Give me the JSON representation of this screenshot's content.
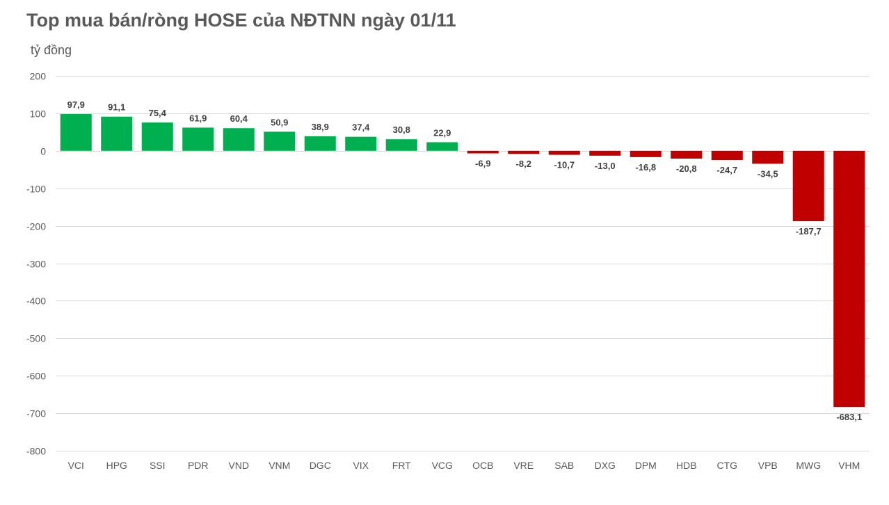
{
  "chart_data": {
    "type": "bar",
    "title": "Top mua bán/ròng HOSE của NĐTNN ngày 01/11",
    "ylabel": "tỷ đồng",
    "xlabel": "",
    "ylim": [
      -800,
      200
    ],
    "yticks": [
      200,
      100,
      0,
      -100,
      -200,
      -300,
      -400,
      -500,
      -600,
      -700,
      -800
    ],
    "ytick_labels": [
      "200",
      "100",
      "0",
      "-100",
      "-200",
      "-300",
      "-400",
      "-500",
      "-600",
      "-700",
      "-800"
    ],
    "grid": true,
    "legend": "none",
    "colors": {
      "positive": "#00b050",
      "negative": "#c00000"
    },
    "categories": [
      "VCI",
      "HPG",
      "SSI",
      "PDR",
      "VND",
      "VNM",
      "DGC",
      "VIX",
      "FRT",
      "VCG",
      "OCB",
      "VRE",
      "SAB",
      "DXG",
      "DPM",
      "HDB",
      "CTG",
      "VPB",
      "MWG",
      "VHM"
    ],
    "values": [
      97.9,
      91.1,
      75.4,
      61.9,
      60.4,
      50.9,
      38.9,
      37.4,
      30.8,
      22.9,
      -6.9,
      -8.2,
      -10.7,
      -13.0,
      -16.8,
      -20.8,
      -24.7,
      -34.5,
      -187.7,
      -683.1
    ],
    "value_labels": [
      "97,9",
      "91,1",
      "75,4",
      "61,9",
      "60,4",
      "50,9",
      "38,9",
      "37,4",
      "30,8",
      "22,9",
      "-6,9",
      "-8,2",
      "-10,7",
      "-13,0",
      "-16,8",
      "-20,8",
      "-24,7",
      "-34,5",
      "-187,7",
      "-683,1"
    ]
  }
}
